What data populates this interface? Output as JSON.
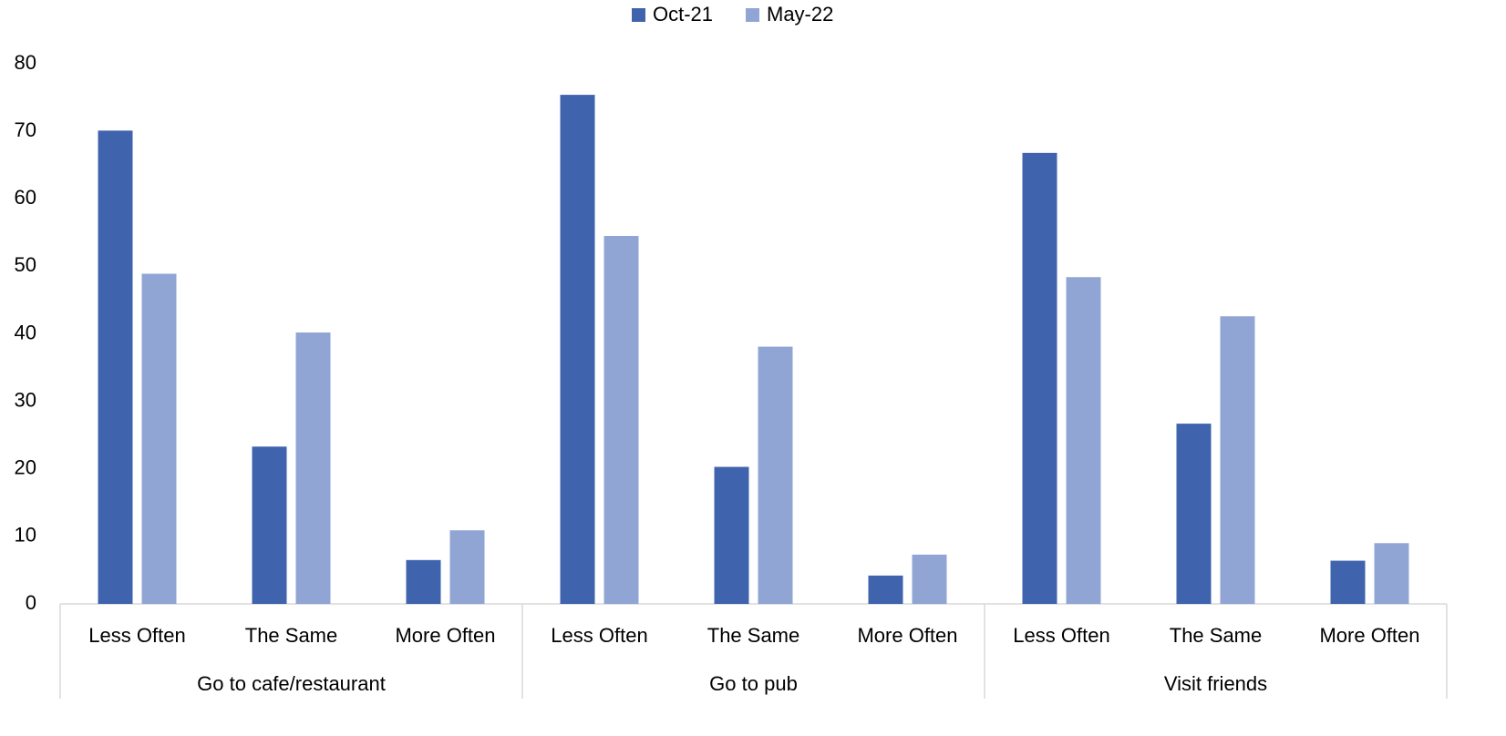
{
  "chart_data": {
    "type": "bar",
    "groups": [
      "Go to cafe/restaurant",
      "Go to pub",
      "Visit friends"
    ],
    "categories": [
      "Less Often",
      "The Same",
      "More Often",
      "Less Often",
      "The Same",
      "More Often",
      "Less Often",
      "The Same",
      "More Often"
    ],
    "series": [
      {
        "name": "Oct-21",
        "color": "#3f64ad",
        "values": [
          70.1,
          23.3,
          6.5,
          75.4,
          20.3,
          4.2,
          66.8,
          26.7,
          6.4
        ]
      },
      {
        "name": "May-22",
        "color": "#91a5d5",
        "values": [
          48.9,
          40.2,
          10.9,
          54.5,
          38.1,
          7.3,
          48.4,
          42.6,
          9.0
        ]
      }
    ],
    "ylim": [
      0,
      80
    ],
    "yticks": [
      0,
      10,
      20,
      30,
      40,
      50,
      60,
      70,
      80
    ],
    "grid": false,
    "legend": "top"
  }
}
